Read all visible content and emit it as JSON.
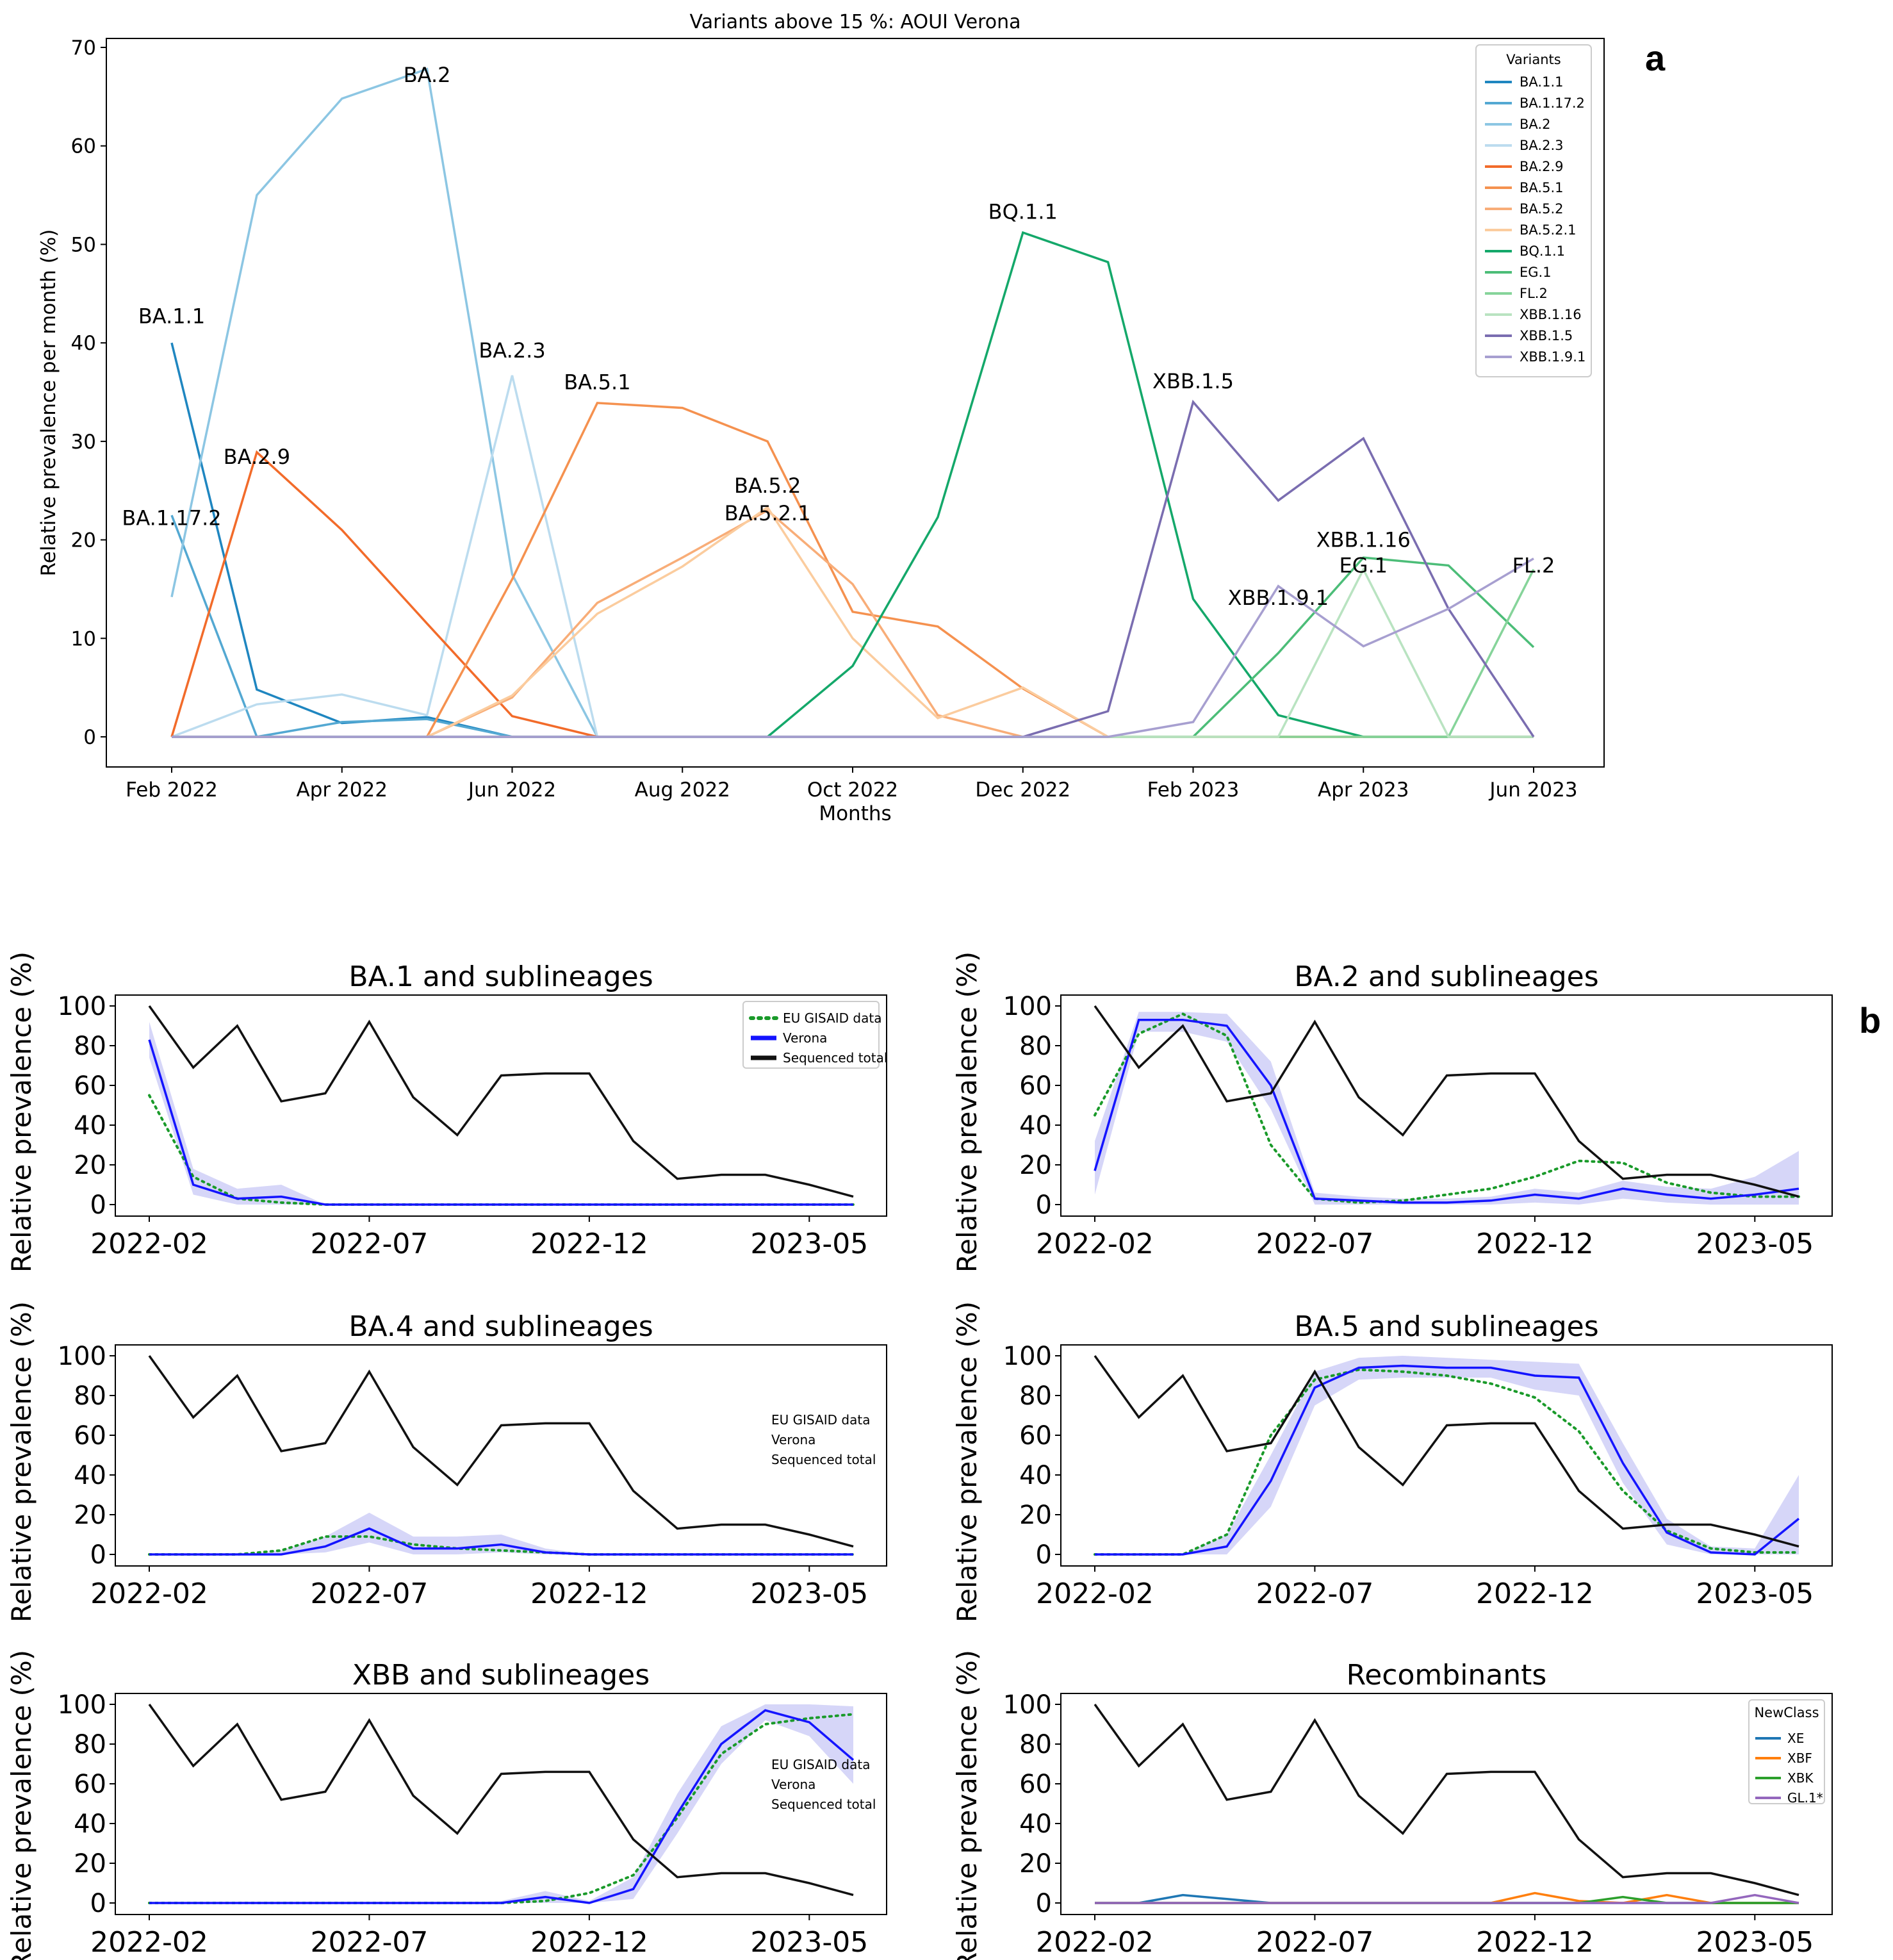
{
  "panel_labels": [
    "a",
    "b"
  ],
  "colors": {
    "BA.1.1": "#1f86c0",
    "BA.1.17.2": "#53a8d2",
    "BA.2": "#8cc6e3",
    "BA.2.3": "#bcdcef",
    "BA.2.9": "#f26b2a",
    "BA.5.1": "#f5914f",
    "BA.5.2": "#f8ad78",
    "BA.5.2.1": "#fbcc9e",
    "BQ.1.1": "#14a86a",
    "EG.1": "#4cbd78",
    "FL.2": "#86d49a",
    "XBB.1.16": "#b9e3c1",
    "XBB.1.5": "#7a6db0",
    "XBB.1.9.1": "#a79fd0",
    "eu": "#1a9a2a",
    "verona": "#1414ff",
    "band": "#c8c8f5",
    "total": "#111111",
    "XE": "#1f77b4",
    "XBF": "#ff7f0e",
    "XBK": "#2ca02c",
    "GL.1*": "#9467bd"
  },
  "chart_data": [
    {
      "type": "line",
      "title": "Variants above 15 %: AOUI Verona",
      "xlabel": "Months",
      "ylabel": "Relative prevalence per month (%)",
      "ylim": [
        0,
        70
      ],
      "yticks": [
        0,
        10,
        20,
        30,
        40,
        50,
        60,
        70
      ],
      "x": [
        "2022-02",
        "2022-03",
        "2022-04",
        "2022-05",
        "2022-06",
        "2022-07",
        "2022-08",
        "2022-09",
        "2022-10",
        "2022-11",
        "2022-12",
        "2023-01",
        "2023-02",
        "2023-03",
        "2023-04",
        "2023-05",
        "2023-06"
      ],
      "xtick_labels": [
        "Feb 2022",
        "Apr 2022",
        "Jun 2022",
        "Aug 2022",
        "Oct 2022",
        "Dec 2022",
        "Feb 2023",
        "Apr 2023",
        "Jun 2023"
      ],
      "legend_title": "Variants",
      "legend_position": "top-right",
      "series": [
        {
          "name": "BA.1.1",
          "values": [
            40,
            4.8,
            1.4,
            2.0,
            0,
            0,
            0,
            0,
            0,
            0,
            0,
            0,
            0,
            0,
            0,
            0,
            0
          ]
        },
        {
          "name": "BA.1.17.2",
          "values": [
            22.5,
            0,
            1.5,
            1.8,
            0,
            0,
            0,
            0,
            0,
            0,
            0,
            0,
            0,
            0,
            0,
            0,
            0
          ]
        },
        {
          "name": "BA.2",
          "values": [
            14.2,
            55,
            64.8,
            67.8,
            16.5,
            0,
            0,
            0,
            0,
            0,
            0,
            0,
            0,
            0,
            0,
            0,
            0
          ]
        },
        {
          "name": "BA.2.3",
          "values": [
            0,
            3.3,
            4.3,
            2.2,
            36.7,
            0,
            0,
            0,
            0,
            0,
            0,
            0,
            0,
            0,
            0,
            0,
            0
          ]
        },
        {
          "name": "BA.2.9",
          "values": [
            0,
            28.9,
            21,
            11.5,
            2.1,
            0,
            0,
            0,
            0,
            0,
            0,
            0,
            0,
            0,
            0,
            0,
            0
          ]
        },
        {
          "name": "BA.5.1",
          "values": [
            0,
            0,
            0,
            0,
            16,
            33.9,
            33.4,
            30,
            12.7,
            11.2,
            4.9,
            0,
            0,
            0,
            0,
            0,
            0
          ]
        },
        {
          "name": "BA.5.2",
          "values": [
            0,
            0,
            0,
            0,
            4,
            13.6,
            18.2,
            23,
            15.5,
            2.2,
            0,
            0,
            0,
            0,
            0,
            0,
            0
          ]
        },
        {
          "name": "BA.5.2.1",
          "values": [
            0,
            0,
            0,
            0,
            4.2,
            12.5,
            17.3,
            23.3,
            10,
            1.9,
            5,
            0,
            0,
            0,
            0,
            0,
            0
          ]
        },
        {
          "name": "BQ.1.1",
          "values": [
            0,
            0,
            0,
            0,
            0,
            0,
            0,
            0,
            7.2,
            22.3,
            51.2,
            48.2,
            14,
            2.2,
            0,
            0,
            0
          ]
        },
        {
          "name": "EG.1",
          "values": [
            0,
            0,
            0,
            0,
            0,
            0,
            0,
            0,
            0,
            0,
            0,
            0,
            0,
            8.5,
            18.2,
            17.4,
            9.1
          ]
        },
        {
          "name": "FL.2",
          "values": [
            0,
            0,
            0,
            0,
            0,
            0,
            0,
            0,
            0,
            0,
            0,
            0,
            0,
            0,
            0,
            0,
            17
          ]
        },
        {
          "name": "XBB.1.16",
          "values": [
            0,
            0,
            0,
            0,
            0,
            0,
            0,
            0,
            0,
            0,
            0,
            0,
            0,
            0,
            17,
            0,
            0
          ]
        },
        {
          "name": "XBB.1.5",
          "values": [
            0,
            0,
            0,
            0,
            0,
            0,
            0,
            0,
            0,
            0,
            0,
            2.6,
            34,
            24,
            30.3,
            13,
            0
          ]
        },
        {
          "name": "XBB.1.9.1",
          "values": [
            0,
            0,
            0,
            0,
            0,
            0,
            0,
            0,
            0,
            0,
            0,
            0,
            1.5,
            15.3,
            9.2,
            13,
            18.1
          ]
        }
      ],
      "annotations": [
        {
          "text": "BA.1.1",
          "x": "2022-02",
          "y": 42
        },
        {
          "text": "BA.1.17.2",
          "x": "2022-02",
          "y": 21.5
        },
        {
          "text": "BA.2",
          "x": "2022-05",
          "y": 66.5
        },
        {
          "text": "BA.2.3",
          "x": "2022-06",
          "y": 38.5
        },
        {
          "text": "BA.2.9",
          "x": "2022-03",
          "y": 27.7
        },
        {
          "text": "BA.5.1",
          "x": "2022-07",
          "y": 35.3
        },
        {
          "text": "BA.5.2",
          "x": "2022-09",
          "y": 24.8
        },
        {
          "text": "BA.5.2.1",
          "x": "2022-09",
          "y": 22
        },
        {
          "text": "BQ.1.1",
          "x": "2022-12",
          "y": 52.6
        },
        {
          "text": "XBB.1.5",
          "x": "2023-02",
          "y": 35.4
        },
        {
          "text": "XBB.1.16",
          "x": "2023-04",
          "y": 19.3
        },
        {
          "text": "EG.1",
          "x": "2023-04",
          "y": 16.7
        },
        {
          "text": "XBB.1.9.1",
          "x": "2023-03",
          "y": 13.4
        },
        {
          "text": "FL.2",
          "x": "2023-06",
          "y": 16.7
        }
      ]
    },
    {
      "type": "line",
      "title": "BA.1 and sublineages",
      "ylabel": "Relative prevalence (%)",
      "ylim": [
        0,
        100
      ],
      "yticks": [
        0,
        20,
        40,
        60,
        80,
        100
      ],
      "xtick_labels": [
        "2022-02",
        "2022-07",
        "2022-12",
        "2023-05"
      ],
      "legend": [
        "EU GISAID data",
        "Verona",
        "Sequenced total"
      ],
      "legend_position": "top-right",
      "series": [
        {
          "name": "EU GISAID data",
          "values": [
            55,
            14,
            3,
            1,
            0,
            0,
            0,
            0,
            0,
            0,
            0,
            0,
            0,
            0,
            0,
            0,
            0
          ]
        },
        {
          "name": "Verona",
          "values": [
            83,
            10,
            3,
            4,
            0,
            0,
            0,
            0,
            0,
            0,
            0,
            0,
            0,
            0,
            0,
            0,
            0
          ]
        },
        {
          "name": "Sequenced total",
          "values": [
            100,
            69,
            90,
            52,
            56,
            92,
            54,
            35,
            65,
            66,
            66,
            32,
            13,
            15,
            15,
            10,
            4
          ]
        }
      ],
      "band_upper": [
        92,
        18,
        8,
        10,
        0,
        0,
        0,
        0,
        0,
        0,
        0,
        0,
        0,
        0,
        0,
        0,
        0
      ],
      "band_lower": [
        74,
        5,
        0,
        0,
        0,
        0,
        0,
        0,
        0,
        0,
        0,
        0,
        0,
        0,
        0,
        0,
        0
      ]
    },
    {
      "type": "line",
      "title": "BA.2 and sublineages",
      "ylabel": "Relative prevalence (%)",
      "ylim": [
        0,
        100
      ],
      "yticks": [
        0,
        20,
        40,
        60,
        80,
        100
      ],
      "xtick_labels": [
        "2022-02",
        "2022-07",
        "2022-12",
        "2023-05"
      ],
      "series": [
        {
          "name": "EU GISAID data",
          "values": [
            45,
            86,
            96,
            85,
            30,
            3,
            1,
            2,
            5,
            8,
            14,
            22,
            21,
            11,
            6,
            4,
            4
          ]
        },
        {
          "name": "Verona",
          "values": [
            17,
            93,
            93,
            90,
            60,
            3,
            2,
            1,
            1,
            2,
            5,
            3,
            8,
            5,
            3,
            5,
            8
          ]
        },
        {
          "name": "Sequenced total",
          "values": [
            100,
            69,
            90,
            52,
            56,
            92,
            54,
            35,
            65,
            66,
            66,
            32,
            13,
            15,
            15,
            10,
            4
          ]
        }
      ],
      "band_upper": [
        32,
        97,
        97,
        96,
        72,
        6,
        4,
        3,
        3,
        4,
        8,
        6,
        12,
        9,
        8,
        14,
        27
      ],
      "band_lower": [
        5,
        87,
        87,
        82,
        48,
        0,
        0,
        0,
        0,
        0,
        1,
        0,
        3,
        1,
        0,
        0,
        0
      ]
    },
    {
      "type": "line",
      "title": "BA.4 and sublineages",
      "ylabel": "Relative prevalence (%)",
      "ylim": [
        0,
        100
      ],
      "yticks": [
        0,
        20,
        40,
        60,
        80,
        100
      ],
      "xtick_labels": [
        "2022-02",
        "2022-07",
        "2022-12",
        "2023-05"
      ],
      "legend": [
        "EU GISAID data",
        "Verona",
        "Sequenced total"
      ],
      "legend_position": "right",
      "series": [
        {
          "name": "EU GISAID data",
          "values": [
            0,
            0,
            0,
            2,
            9,
            9,
            5,
            3,
            2,
            1,
            0,
            0,
            0,
            0,
            0,
            0,
            0
          ]
        },
        {
          "name": "Verona",
          "values": [
            0,
            0,
            0,
            0,
            4,
            13,
            3,
            3,
            5,
            1,
            0,
            0,
            0,
            0,
            0,
            0,
            0
          ]
        },
        {
          "name": "Sequenced total",
          "values": [
            100,
            69,
            90,
            52,
            56,
            92,
            54,
            35,
            65,
            66,
            66,
            32,
            13,
            15,
            15,
            10,
            4
          ]
        }
      ],
      "band_upper": [
        0,
        0,
        0,
        2,
        9,
        21,
        9,
        9,
        10,
        3,
        0,
        0,
        0,
        0,
        0,
        0,
        0
      ],
      "band_lower": [
        0,
        0,
        0,
        0,
        1,
        6,
        0,
        0,
        1,
        0,
        0,
        0,
        0,
        0,
        0,
        0,
        0
      ]
    },
    {
      "type": "line",
      "title": "BA.5 and sublineages",
      "ylabel": "Relative prevalence (%)",
      "ylim": [
        0,
        100
      ],
      "yticks": [
        0,
        20,
        40,
        60,
        80,
        100
      ],
      "xtick_labels": [
        "2022-02",
        "2022-07",
        "2022-12",
        "2023-05"
      ],
      "series": [
        {
          "name": "EU GISAID data",
          "values": [
            0,
            0,
            0,
            10,
            60,
            88,
            93,
            92,
            90,
            86,
            79,
            62,
            32,
            12,
            3,
            1,
            1
          ]
        },
        {
          "name": "Verona",
          "values": [
            0,
            0,
            0,
            4,
            37,
            84,
            94,
            95,
            94,
            94,
            90,
            89,
            46,
            11,
            1,
            0,
            18
          ]
        },
        {
          "name": "Sequenced total",
          "values": [
            100,
            69,
            90,
            52,
            56,
            92,
            54,
            35,
            65,
            66,
            66,
            32,
            13,
            15,
            15,
            10,
            4
          ]
        }
      ],
      "band_upper": [
        0,
        0,
        0,
        10,
        50,
        92,
        99,
        100,
        99,
        98,
        97,
        96,
        56,
        18,
        4,
        3,
        40
      ],
      "band_lower": [
        0,
        0,
        0,
        0,
        24,
        75,
        88,
        89,
        89,
        89,
        83,
        80,
        36,
        5,
        0,
        0,
        0
      ]
    },
    {
      "type": "line",
      "title": "XBB and sublineages",
      "ylabel": "Relative prevalence (%)",
      "ylim": [
        0,
        100
      ],
      "yticks": [
        0,
        20,
        40,
        60,
        80,
        100
      ],
      "xtick_labels": [
        "2022-02",
        "2022-07",
        "2022-12",
        "2023-05"
      ],
      "legend": [
        "EU GISAID data",
        "Verona",
        "Sequenced total"
      ],
      "legend_position": "right",
      "series": [
        {
          "name": "EU GISAID data",
          "values": [
            0,
            0,
            0,
            0,
            0,
            0,
            0,
            0,
            0,
            1,
            5,
            14,
            43,
            75,
            90,
            93,
            95
          ]
        },
        {
          "name": "Verona",
          "values": [
            0,
            0,
            0,
            0,
            0,
            0,
            0,
            0,
            0,
            3,
            0,
            7,
            45,
            80,
            97,
            91,
            72
          ]
        },
        {
          "name": "Sequenced total",
          "values": [
            100,
            69,
            90,
            52,
            56,
            92,
            54,
            35,
            65,
            66,
            66,
            32,
            13,
            15,
            15,
            10,
            4
          ]
        }
      ],
      "band_upper": [
        0,
        0,
        0,
        0,
        0,
        0,
        0,
        0,
        1,
        6,
        1,
        13,
        55,
        89,
        100,
        100,
        99
      ],
      "band_lower": [
        0,
        0,
        0,
        0,
        0,
        0,
        0,
        0,
        0,
        0,
        0,
        2,
        35,
        70,
        92,
        84,
        60
      ]
    },
    {
      "type": "line",
      "title": "Recombinants",
      "ylabel": "Relative prevalence (%)",
      "ylim": [
        0,
        100
      ],
      "yticks": [
        0,
        20,
        40,
        60,
        80,
        100
      ],
      "xtick_labels": [
        "2022-02",
        "2022-07",
        "2022-12",
        "2023-05"
      ],
      "legend_title": "NewClass",
      "legend": [
        "XE",
        "XBF",
        "XBK",
        "GL.1*"
      ],
      "legend_position": "top-right",
      "series": [
        {
          "name": "XE",
          "values": [
            0,
            0,
            4,
            2,
            0,
            0,
            0,
            0,
            0,
            0,
            0,
            0,
            0,
            0,
            0,
            0,
            0
          ]
        },
        {
          "name": "XBF",
          "values": [
            0,
            0,
            0,
            0,
            0,
            0,
            0,
            0,
            0,
            0,
            5,
            1,
            0,
            4,
            0,
            0,
            0
          ]
        },
        {
          "name": "XBK",
          "values": [
            0,
            0,
            0,
            0,
            0,
            0,
            0,
            0,
            0,
            0,
            0,
            0,
            3,
            0,
            0,
            0,
            0
          ]
        },
        {
          "name": "GL.1*",
          "values": [
            0,
            0,
            0,
            0,
            0,
            0,
            0,
            0,
            0,
            0,
            0,
            0,
            0,
            0,
            0,
            4,
            0
          ]
        },
        {
          "name": "Sequenced total",
          "values": [
            100,
            69,
            90,
            52,
            56,
            92,
            54,
            35,
            65,
            66,
            66,
            32,
            13,
            15,
            15,
            10,
            4
          ]
        }
      ]
    }
  ]
}
